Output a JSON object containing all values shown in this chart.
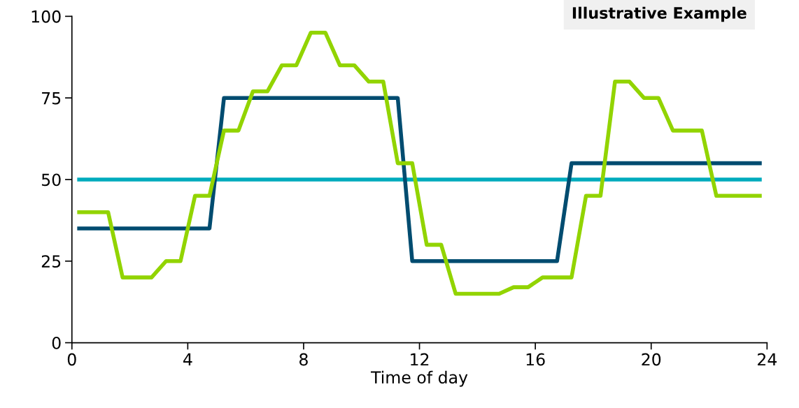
{
  "chart_data": {
    "type": "line",
    "xlabel": "Time of day",
    "annotations": [
      "Illustrative Example"
    ],
    "xlim": [
      0,
      24
    ],
    "xticks": [
      0,
      4,
      8,
      12,
      16,
      20,
      24
    ],
    "ylim": [
      0,
      100
    ],
    "yticks": [
      0,
      25,
      50,
      75,
      100
    ],
    "grid": false,
    "marker": "none",
    "line_style": "solid",
    "series": [
      {
        "color": "#00abbd",
        "x": [
          0.25,
          23.75
        ],
        "values": [
          50,
          50
        ]
      },
      {
        "color": "#004c70",
        "x": [
          0.25,
          4.75,
          5.25,
          11.25,
          11.75,
          16.75,
          17.25,
          23.75
        ],
        "values": [
          35,
          35,
          75,
          75,
          25,
          25,
          55,
          55
        ]
      },
      {
        "color": "#92d400",
        "x": [
          0.25,
          1.25,
          1.75,
          2.75,
          3.25,
          3.75,
          4.25,
          4.75,
          5.25,
          5.75,
          6.25,
          6.75,
          7.25,
          7.75,
          8.25,
          8.75,
          9.25,
          9.75,
          10.25,
          10.75,
          11.25,
          11.75,
          12.25,
          12.75,
          13.25,
          14.75,
          15.25,
          15.75,
          16.25,
          17.25,
          17.75,
          18.25,
          18.75,
          19.25,
          19.75,
          20.25,
          20.75,
          21.75,
          22.25,
          23.75
        ],
        "values": [
          40,
          40,
          20,
          20,
          25,
          25,
          45,
          45,
          65,
          65,
          77,
          77,
          85,
          85,
          95,
          95,
          85,
          85,
          80,
          80,
          55,
          55,
          30,
          30,
          15,
          15,
          17,
          17,
          20,
          20,
          45,
          45,
          80,
          80,
          75,
          75,
          65,
          65,
          45,
          45
        ]
      }
    ]
  }
}
